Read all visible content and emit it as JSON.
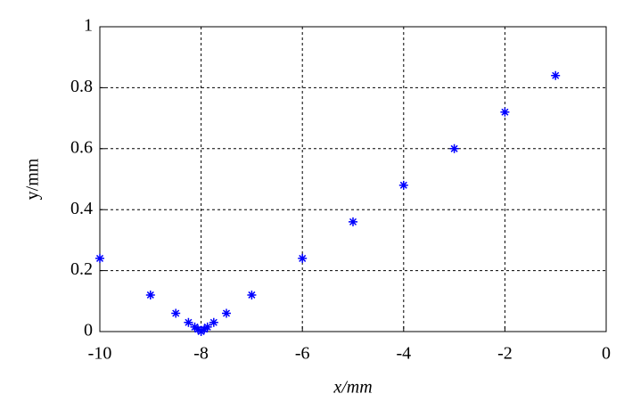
{
  "chart_data": {
    "type": "scatter",
    "x_label": "x/mm",
    "y_label": "y/mm",
    "x": [
      -10,
      -9,
      -8.5,
      -8.25,
      -8.125,
      -8.0625,
      -8,
      -7.9375,
      -7.875,
      -7.75,
      -7.5,
      -7,
      -6,
      -5,
      -4,
      -3,
      -2,
      -1
    ],
    "values": [
      0.24,
      0.12,
      0.06,
      0.03,
      0.015,
      0.0075,
      0,
      0.0075,
      0.015,
      0.03,
      0.06,
      0.12,
      0.24,
      0.36,
      0.48,
      0.6,
      0.72,
      0.84
    ],
    "color": "#0000ff",
    "xlim": [
      -10,
      0
    ],
    "ylim": [
      0,
      1
    ],
    "xticks": [
      -10,
      -8,
      -6,
      -4,
      -2,
      0
    ],
    "yticks": [
      0,
      0.2,
      0.4,
      0.6,
      0.8,
      1
    ],
    "grid": true
  }
}
